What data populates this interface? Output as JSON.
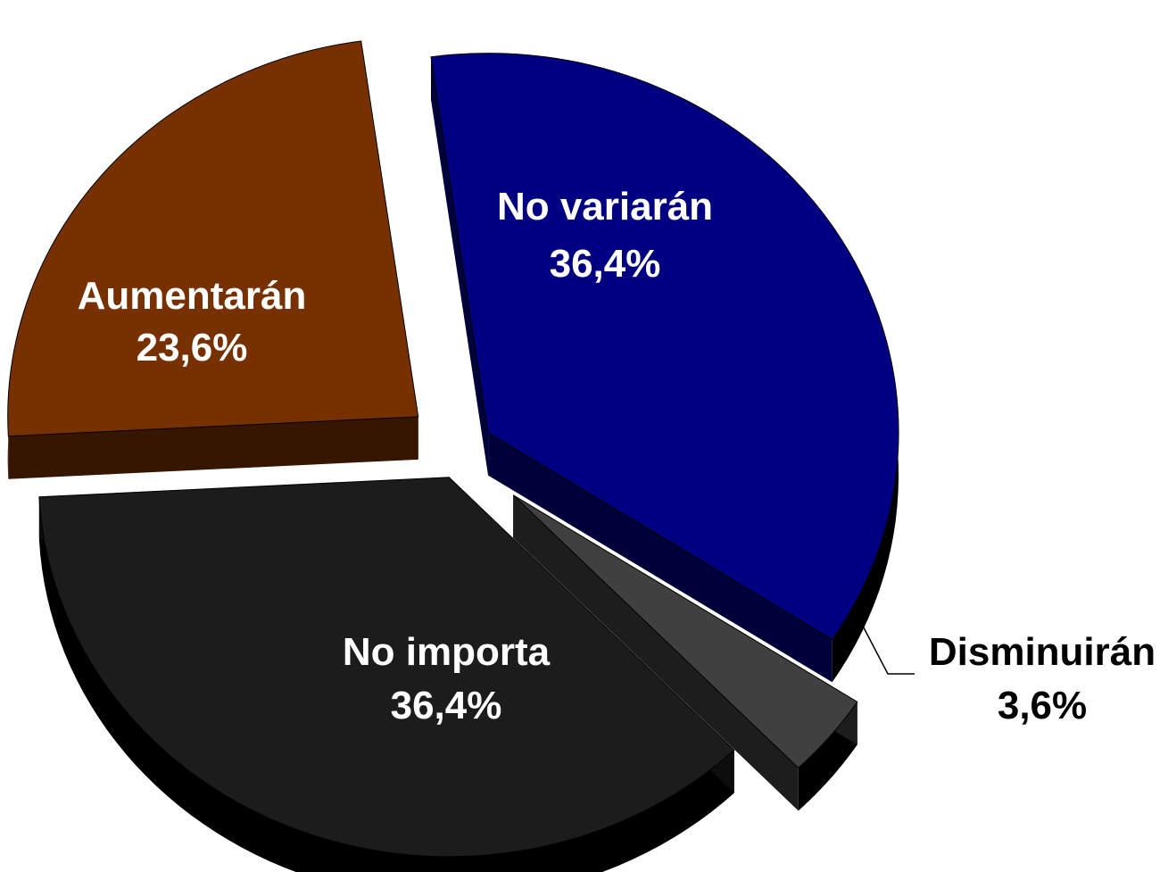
{
  "chart_data": {
    "type": "pie",
    "title": "",
    "slices": [
      {
        "label": "No variarán",
        "value_label": "36,4%",
        "value": 36.4,
        "color": "#000080",
        "label_color": "#ffffff"
      },
      {
        "label": "Disminuirán",
        "value_label": "3,6%",
        "value": 3.6,
        "color": "#404040",
        "label_color": "#000000"
      },
      {
        "label": "No importa",
        "value_label": "36,4%",
        "value": 36.4,
        "color": "#1c1c1c",
        "label_color": "#ffffff"
      },
      {
        "label": "Aumentarán",
        "value_label": "23,6%",
        "value": 23.6,
        "color": "#773100",
        "label_color": "#ffffff"
      }
    ],
    "exploded": true,
    "three_d": true
  }
}
